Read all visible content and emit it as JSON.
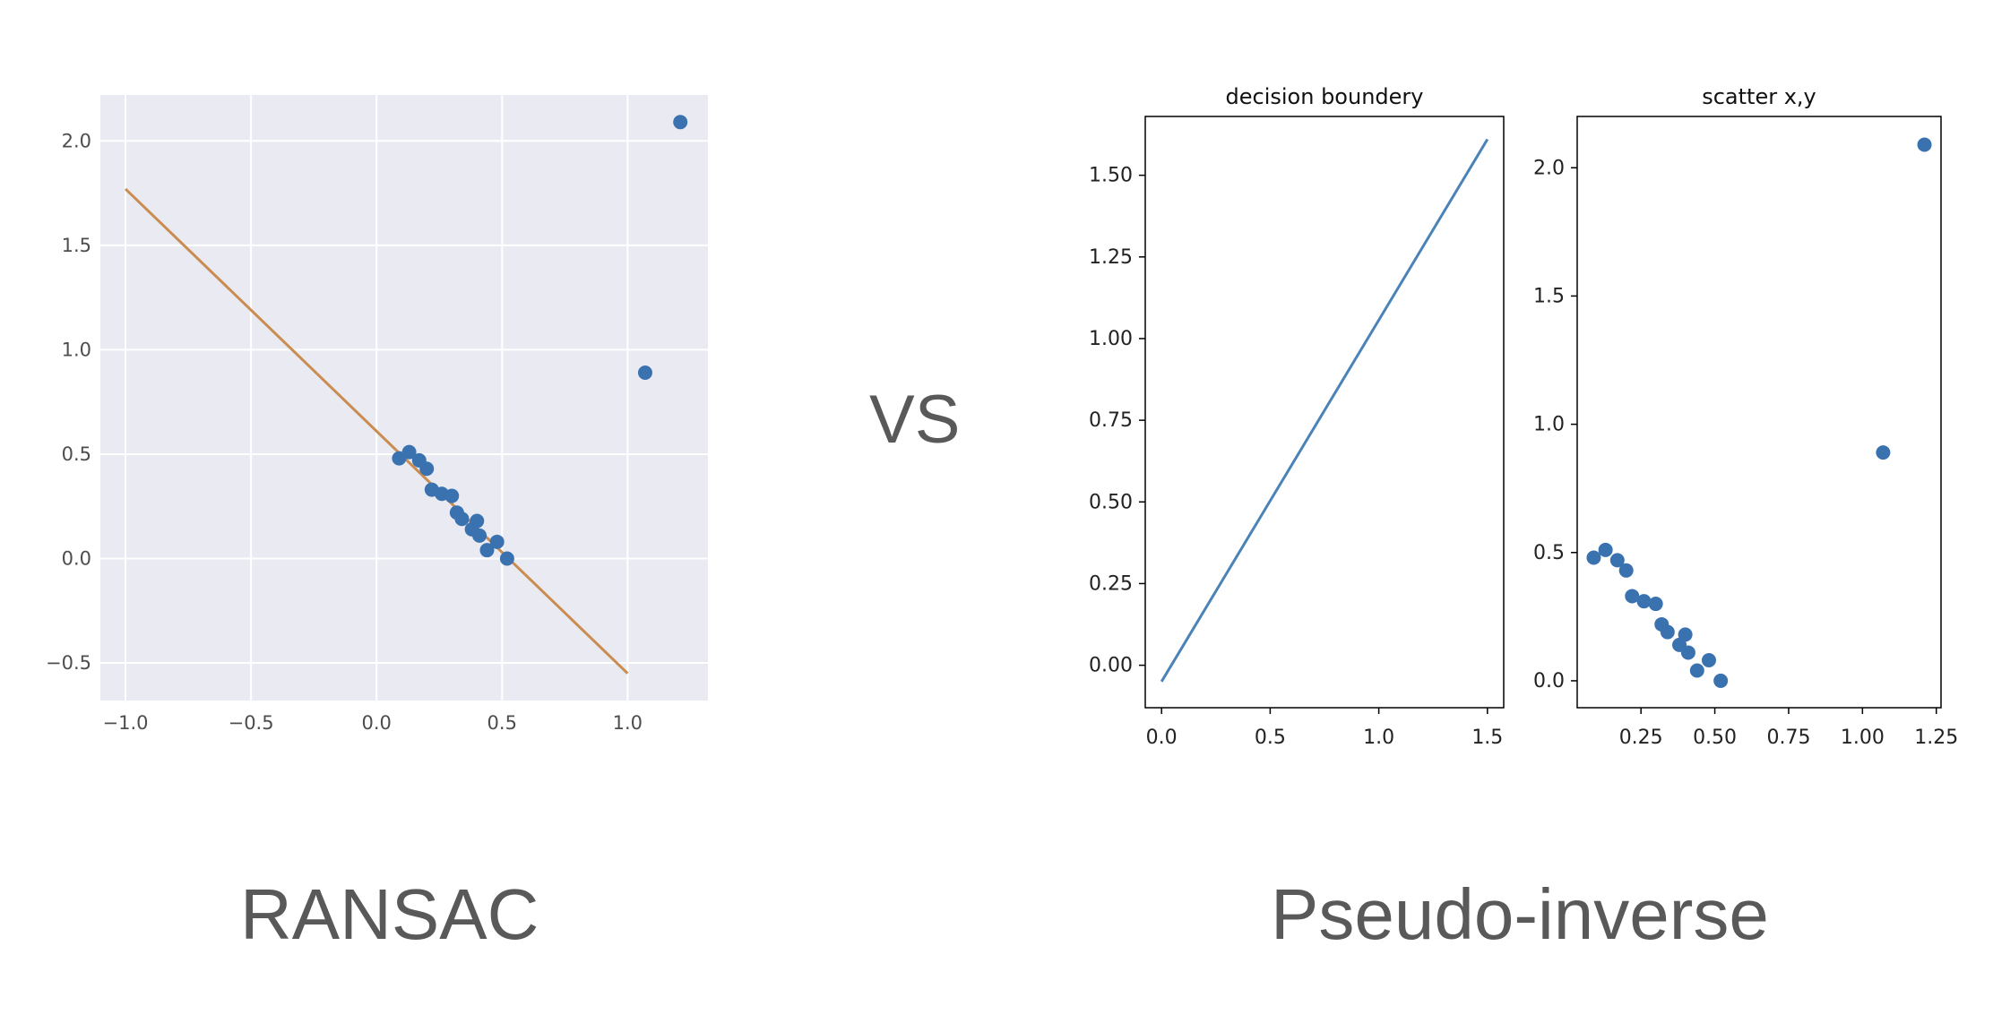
{
  "vs_label": "VS",
  "captions": {
    "left": "RANSAC",
    "right": "Pseudo-inverse"
  },
  "colors": {
    "point": "#3a72b0",
    "fit_line": "#c98d52",
    "boundary_line": "#4a83b8",
    "seaborn_bg": "#eaeaf2",
    "grid": "#ffffff",
    "text": "#595959"
  },
  "scatter_points": {
    "x": [
      0.09,
      0.13,
      0.17,
      0.2,
      0.22,
      0.26,
      0.3,
      0.32,
      0.34,
      0.38,
      0.4,
      0.41,
      0.44,
      0.48,
      0.52,
      1.07,
      1.21
    ],
    "y": [
      0.48,
      0.51,
      0.47,
      0.43,
      0.33,
      0.31,
      0.3,
      0.22,
      0.19,
      0.14,
      0.18,
      0.11,
      0.04,
      0.08,
      0.0,
      0.89,
      2.09
    ]
  },
  "chart_data": [
    {
      "type": "scatter",
      "title": "",
      "style": "seaborn",
      "grid": true,
      "xlim": [
        -1.1,
        1.32
      ],
      "ylim": [
        -0.68,
        2.22
      ],
      "xticks": [
        "−1.0",
        "−0.5",
        "0.0",
        "0.5",
        "1.0"
      ],
      "xtick_values": [
        -1.0,
        -0.5,
        0.0,
        0.5,
        1.0
      ],
      "yticks": [
        "−0.5",
        "0.0",
        "0.5",
        "1.0",
        "1.5",
        "2.0"
      ],
      "ytick_values": [
        -0.5,
        0.0,
        0.5,
        1.0,
        1.5,
        2.0
      ],
      "series": [
        {
          "kind": "line",
          "x": [
            -1.0,
            1.0
          ],
          "y": [
            1.77,
            -0.55
          ]
        },
        {
          "kind": "scatter",
          "points_ref": "scatter_points"
        }
      ]
    },
    {
      "type": "line",
      "title": "decision boundery",
      "grid": false,
      "xlim": [
        -0.075,
        1.575
      ],
      "ylim": [
        -0.13,
        1.68
      ],
      "xticks": [
        "0.0",
        "0.5",
        "1.0",
        "1.5"
      ],
      "xtick_values": [
        0.0,
        0.5,
        1.0,
        1.5
      ],
      "yticks": [
        "0.00",
        "0.25",
        "0.50",
        "0.75",
        "1.00",
        "1.25",
        "1.50"
      ],
      "ytick_values": [
        0.0,
        0.25,
        0.5,
        0.75,
        1.0,
        1.25,
        1.5
      ],
      "series": [
        {
          "kind": "line",
          "x": [
            0.0,
            1.5
          ],
          "y": [
            -0.05,
            1.61
          ]
        }
      ]
    },
    {
      "type": "scatter",
      "title": "scatter x,y",
      "grid": false,
      "xlim": [
        0.034,
        1.266
      ],
      "ylim": [
        -0.105,
        2.2
      ],
      "xticks": [
        "0.25",
        "0.50",
        "0.75",
        "1.00",
        "1.25"
      ],
      "xtick_values": [
        0.25,
        0.5,
        0.75,
        1.0,
        1.25
      ],
      "yticks": [
        "0.0",
        "0.5",
        "1.0",
        "1.5",
        "2.0"
      ],
      "ytick_values": [
        0.0,
        0.5,
        1.0,
        1.5,
        2.0
      ],
      "series": [
        {
          "kind": "scatter",
          "points_ref": "scatter_points"
        }
      ]
    }
  ]
}
